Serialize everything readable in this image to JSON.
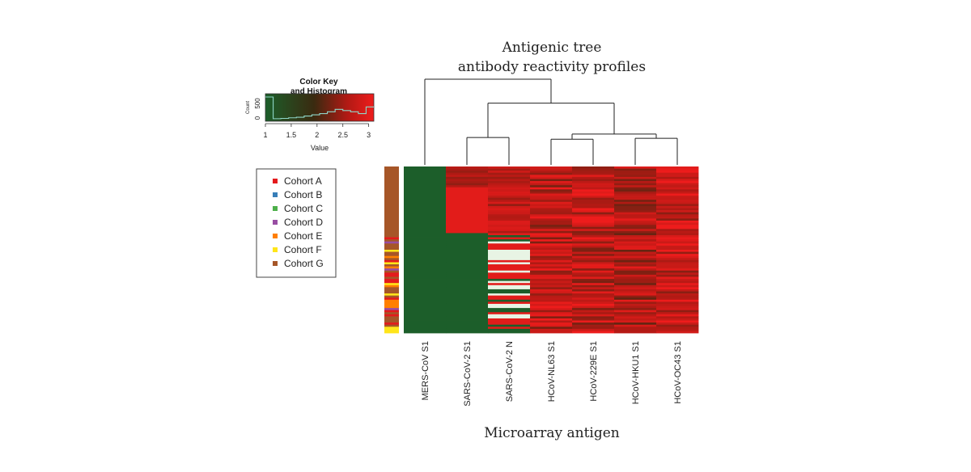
{
  "chart_data": {
    "type": "heatmap",
    "title": "Antigenic tree",
    "subtitle": "antibody reactivity profiles",
    "xlabel": "Microarray antigen",
    "columns": [
      "MERS-CoV S1",
      "SARS-CoV-2 S1",
      "SARS-CoV-2 N",
      "HCoV-NL63 S1",
      "HCoV-229E S1",
      "HCoV-HKU1 S1",
      "HCoV-OC43 S1"
    ],
    "column_mean_value": [
      1.0,
      1.8,
      2.2,
      2.7,
      2.7,
      2.6,
      2.8
    ],
    "dendrogram": [
      {
        "group": [
          "SARS-CoV-2 S1",
          "SARS-CoV-2 N"
        ],
        "height": 0.32
      },
      {
        "group": [
          "HCoV-NL63 S1",
          "HCoV-229E S1"
        ],
        "height": 0.3
      },
      {
        "group": [
          "HCoV-HKU1 S1",
          "HCoV-OC43 S1"
        ],
        "height": 0.31
      },
      {
        "group": [
          "HCoV-NL63 S1",
          "HCoV-229E S1",
          "HCoV-HKU1 S1",
          "HCoV-OC43 S1"
        ],
        "height": 0.36
      },
      {
        "group": [
          "SARS-CoV-2 S1",
          "SARS-CoV-2 N",
          "HCoV-NL63 S1",
          "HCoV-229E S1",
          "HCoV-HKU1 S1",
          "HCoV-OC43 S1"
        ],
        "height": 0.72
      },
      {
        "group": [
          "MERS-CoV S1",
          "SARS-CoV-2 S1",
          "SARS-CoV-2 N",
          "HCoV-NL63 S1",
          "HCoV-229E S1",
          "HCoV-HKU1 S1",
          "HCoV-OC43 S1"
        ],
        "height": 1.0
      }
    ],
    "color_key": {
      "title": "Color Key",
      "subtitle": "and Histogram",
      "ylabel": "Count",
      "y_ticks": [
        "0",
        "500"
      ],
      "xlabel": "Value",
      "x_ticks": [
        "1",
        "1.5",
        "2",
        "2.5",
        "3"
      ],
      "range": [
        1,
        3.1
      ],
      "low_color": "#1c5e2a",
      "mid_color": "#3a2a10",
      "high_color": "#ee1c1c",
      "histogram_counts": [
        750,
        30,
        40,
        60,
        80,
        120,
        160,
        200,
        260,
        340,
        300,
        260,
        200,
        420
      ]
    },
    "legend": {
      "entries": [
        {
          "label": "Cohort A",
          "color": "#e41a1c"
        },
        {
          "label": "Cohort B",
          "color": "#377eb8"
        },
        {
          "label": "Cohort C",
          "color": "#4daf4a"
        },
        {
          "label": "Cohort D",
          "color": "#984ea3"
        },
        {
          "label": "Cohort E",
          "color": "#ff7f00"
        },
        {
          "label": "Cohort F",
          "color": "#ffe51a"
        },
        {
          "label": "Cohort G",
          "color": "#a65628"
        }
      ]
    }
  }
}
